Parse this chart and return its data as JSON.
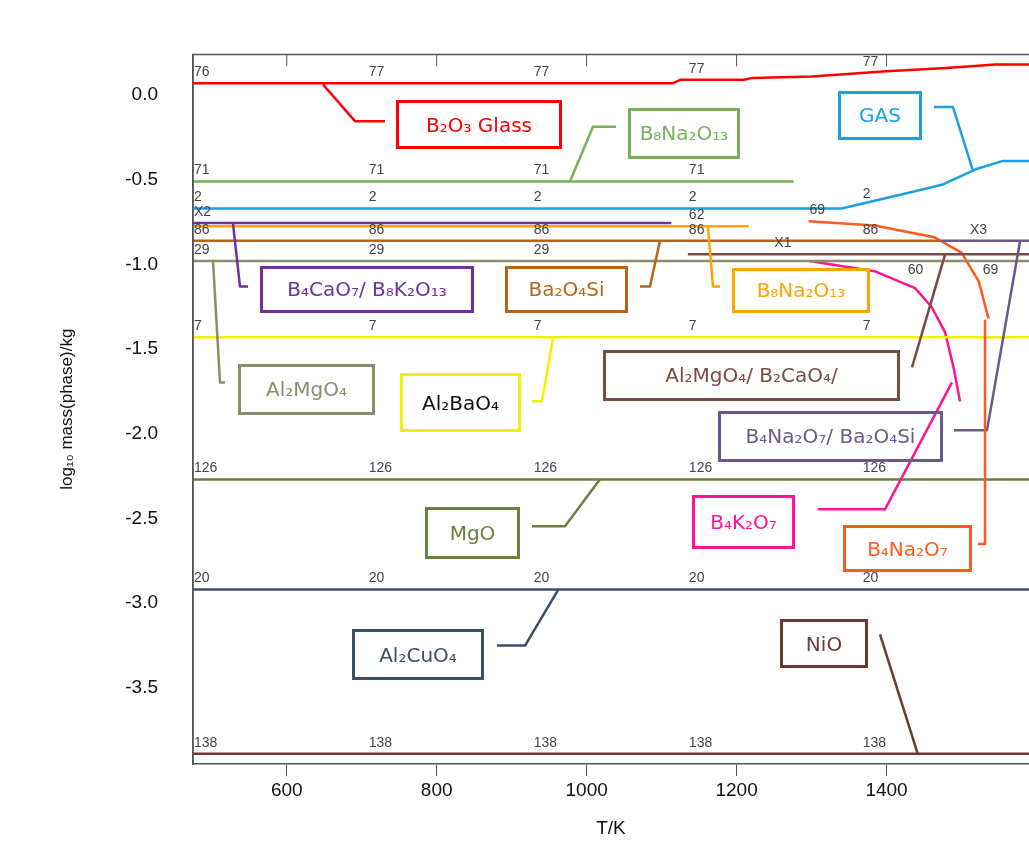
{
  "chart_data": {
    "type": "line",
    "xlabel": "T/K",
    "ylabel": "log₁₀ mass(phase)/kg",
    "xlim": [
      475,
      1590
    ],
    "xticks": [
      600,
      800,
      1000,
      1200,
      1400
    ],
    "ylim": [
      -3.95,
      0.24
    ],
    "yticks": [
      {
        "value": 0,
        "label": "0.0"
      },
      -0.5,
      {
        "value": -1,
        "label": "-1.0"
      },
      -1.5,
      {
        "value": -2,
        "label": "-2.0"
      },
      -2.5,
      {
        "value": -3,
        "label": "-3.0"
      },
      -3.5
    ],
    "grid": false,
    "legend": false,
    "marker": "none",
    "line_style": "solid",
    "series": [
      {
        "name": "B₂O₃ Glass",
        "color": "#ff0000",
        "x": [
          475,
          1115,
          1125,
          1210,
          1220,
          1300,
          1400,
          1480,
          1545,
          1590
        ],
        "values": [
          0.07,
          0.07,
          0.09,
          0.09,
          0.1,
          0.11,
          0.14,
          0.16,
          0.18,
          0.18
        ]
      },
      {
        "name": "B₈Na₂O₁₃",
        "color": "#77b255",
        "x": [
          475,
          1276
        ],
        "values": [
          -0.51,
          -0.51
        ]
      },
      {
        "name": "GAS",
        "color": "#1ba1e2",
        "x": [
          475,
          1340,
          1407,
          1474,
          1518,
          1554,
          1590
        ],
        "values": [
          -0.67,
          -0.67,
          -0.6,
          -0.53,
          -0.44,
          -0.39,
          -0.39
        ]
      },
      {
        "name": "B₄CaO₇/ B₈K₂O₁₃",
        "color": "#7030a0",
        "x": [
          475,
          1113
        ],
        "values": [
          -0.755,
          -0.755
        ]
      },
      {
        "name": "B₈Na₂O₁₃",
        "color": "#ffa500",
        "x": [
          475,
          1216
        ],
        "values": [
          -0.775,
          -0.775
        ]
      },
      {
        "name": "Ba₂O₄Si",
        "color": "#b8651b",
        "x": [
          475,
          1474
        ],
        "values": [
          -0.86,
          -0.86
        ]
      },
      {
        "name": "Al₂MgO₄/ B₂CaO₄/",
        "color": "#7a4a48",
        "x": [
          1135,
          1590
        ],
        "values": [
          -0.94,
          -0.94
        ]
      },
      {
        "name": "Al₂MgO₄",
        "color": "#8c8c6e",
        "x": [
          475,
          1590
        ],
        "values": [
          -0.98,
          -0.98
        ]
      },
      {
        "name": "Al₂BaO₄",
        "color": "#f2f200",
        "x": [
          475,
          1590
        ],
        "values": [
          -1.43,
          -1.43
        ]
      },
      {
        "name": "B₄Na₂O₇/ Ba₂O₄Si",
        "color": "#6a5a8a",
        "x": [
          1474,
          1590
        ],
        "values": [
          -0.86,
          -0.86
        ]
      },
      {
        "name": "B₄K₂O₇",
        "color": "#ff1493",
        "x": [
          1297,
          1384,
          1438,
          1460,
          1478,
          1490,
          1498
        ],
        "values": [
          -0.98,
          -1.04,
          -1.14,
          -1.25,
          -1.4,
          -1.62,
          -1.81
        ]
      },
      {
        "name": "B₄Na₂O₇",
        "color": "#ff5a1f",
        "x": [
          1296,
          1384,
          1464,
          1500,
          1523,
          1536
        ],
        "values": [
          -0.745,
          -0.77,
          -0.84,
          -0.93,
          -1.1,
          -1.32
        ]
      },
      {
        "name": "MgO",
        "color": "#6b7f3e",
        "x": [
          475,
          1590
        ],
        "values": [
          -2.27,
          -2.27
        ]
      },
      {
        "name": "Al₂CuO₄",
        "color": "#3b5068",
        "x": [
          475,
          1590
        ],
        "values": [
          -2.92,
          -2.92
        ]
      },
      {
        "name": "NiO",
        "color": "#6d3a36",
        "x": [
          475,
          1590
        ],
        "values": [
          -3.89,
          -3.89
        ]
      }
    ],
    "annotations": [
      {
        "text": "76",
        "x": 475,
        "y": 0.07
      },
      {
        "text": "77",
        "x": 708,
        "y": 0.07
      },
      {
        "text": "77",
        "x": 928,
        "y": 0.07
      },
      {
        "text": "77",
        "x": 1135,
        "y": 0.09
      },
      {
        "text": "77",
        "x": 1367,
        "y": 0.13
      },
      {
        "text": "71",
        "x": 475,
        "y": -0.51
      },
      {
        "text": "71",
        "x": 708,
        "y": -0.51
      },
      {
        "text": "71",
        "x": 928,
        "y": -0.51
      },
      {
        "text": "71",
        "x": 1135,
        "y": -0.51
      },
      {
        "text": "2",
        "x": 475,
        "y": -0.67
      },
      {
        "text": "2",
        "x": 708,
        "y": -0.67
      },
      {
        "text": "2",
        "x": 928,
        "y": -0.67
      },
      {
        "text": "2",
        "x": 1135,
        "y": -0.67
      },
      {
        "text": "2",
        "x": 1367,
        "y": -0.65
      },
      {
        "text": "X2",
        "x": 475,
        "y": -0.755
      },
      {
        "text": "62",
        "x": 1135,
        "y": -0.775
      },
      {
        "text": "86",
        "x": 475,
        "y": -0.86
      },
      {
        "text": "86",
        "x": 708,
        "y": -0.86
      },
      {
        "text": "86",
        "x": 928,
        "y": -0.86
      },
      {
        "text": "86",
        "x": 1135,
        "y": -0.86
      },
      {
        "text": "86",
        "x": 1367,
        "y": -0.86
      },
      {
        "text": "29",
        "x": 475,
        "y": -0.98
      },
      {
        "text": "29",
        "x": 708,
        "y": -0.98
      },
      {
        "text": "29",
        "x": 928,
        "y": -0.98
      },
      {
        "text": "69",
        "x": 1296,
        "y": -0.745
      },
      {
        "text": "X1",
        "x": 1249,
        "y": -0.94
      },
      {
        "text": "X3",
        "x": 1510,
        "y": -0.86
      },
      {
        "text": "60",
        "x": 1427,
        "y": -1.1
      },
      {
        "text": "69",
        "x": 1527,
        "y": -1.1
      },
      {
        "text": "7",
        "x": 475,
        "y": -1.43
      },
      {
        "text": "7",
        "x": 708,
        "y": -1.43
      },
      {
        "text": "7",
        "x": 928,
        "y": -1.43
      },
      {
        "text": "7",
        "x": 1135,
        "y": -1.43
      },
      {
        "text": "7",
        "x": 1367,
        "y": -1.43
      },
      {
        "text": "126",
        "x": 475,
        "y": -2.27
      },
      {
        "text": "126",
        "x": 708,
        "y": -2.27
      },
      {
        "text": "126",
        "x": 928,
        "y": -2.27
      },
      {
        "text": "126",
        "x": 1135,
        "y": -2.27
      },
      {
        "text": "126",
        "x": 1367,
        "y": -2.27
      },
      {
        "text": "20",
        "x": 475,
        "y": -2.92
      },
      {
        "text": "20",
        "x": 708,
        "y": -2.92
      },
      {
        "text": "20",
        "x": 928,
        "y": -2.92
      },
      {
        "text": "20",
        "x": 1135,
        "y": -2.92
      },
      {
        "text": "20",
        "x": 1367,
        "y": -2.92
      },
      {
        "text": "138",
        "x": 475,
        "y": -3.89
      },
      {
        "text": "138",
        "x": 708,
        "y": -3.89
      },
      {
        "text": "138",
        "x": 928,
        "y": -3.89
      },
      {
        "text": "138",
        "x": 1135,
        "y": -3.89
      },
      {
        "text": "138",
        "x": 1367,
        "y": -3.89
      }
    ]
  }
}
